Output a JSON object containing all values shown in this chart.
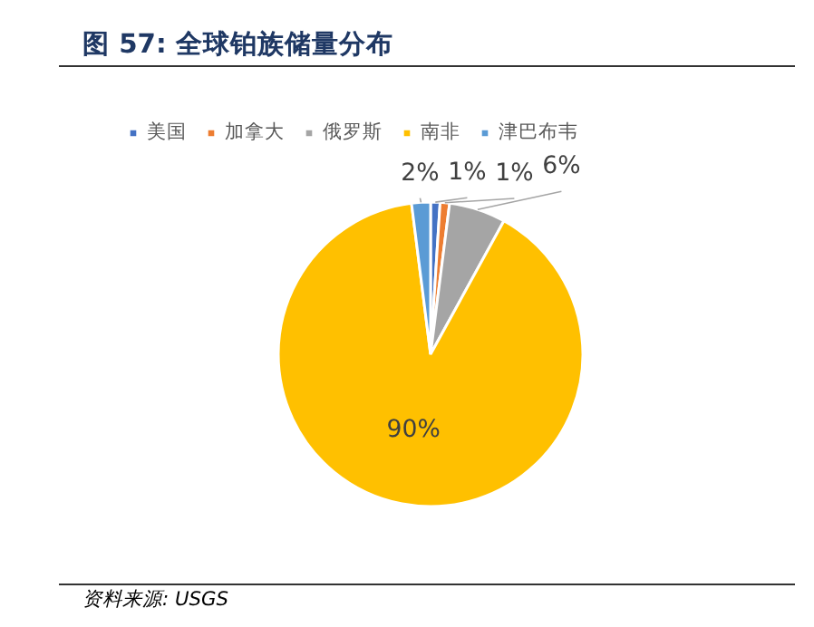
{
  "chart_data": {
    "type": "pie",
    "title": "图 57:  全球铂族储量分布",
    "categories": [
      "美国",
      "加拿大",
      "俄罗斯",
      "南非",
      "津巴布韦"
    ],
    "values": [
      1,
      1,
      6,
      90,
      2
    ],
    "colors": [
      "#4472c4",
      "#ed7d31",
      "#a5a5a5",
      "#ffc000",
      "#5b9bd5"
    ],
    "value_labels": [
      "1%",
      "1%",
      "6%",
      "90%",
      "2%"
    ],
    "legend": "top",
    "annotations": [
      "资料来源: USGS"
    ]
  }
}
